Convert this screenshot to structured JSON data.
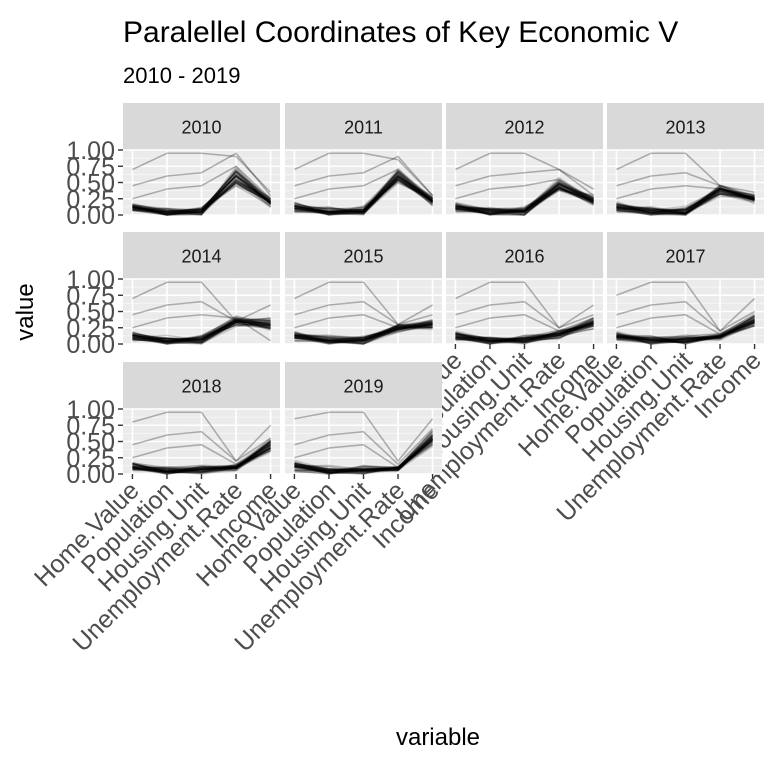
{
  "chart_data": {
    "type": "line",
    "title": "Paralellel Coordinates of Key Economic V",
    "subtitle": "2010 - 2019",
    "xlabel": "variable",
    "ylabel": "value",
    "ylim": [
      0,
      1
    ],
    "yticks": [
      "0.00",
      "0.25",
      "0.50",
      "0.75",
      "1.00"
    ],
    "x": [
      "Home.Value",
      "Population",
      "Housing.Unit",
      "Unemployment.Rate",
      "Income"
    ],
    "grid": true,
    "facets": [
      {
        "label": "2010",
        "center": [
          0.12,
          0.05,
          0.06,
          0.6,
          0.2
        ],
        "spread": [
          0.1,
          0.1,
          0.1,
          0.2,
          0.1
        ],
        "highlights": [
          [
            0.7,
            0.95,
            0.95,
            0.9,
            0.35
          ],
          [
            0.45,
            0.6,
            0.65,
            0.95,
            0.3
          ],
          [
            0.25,
            0.4,
            0.45,
            0.75,
            0.25
          ]
        ]
      },
      {
        "label": "2011",
        "center": [
          0.12,
          0.05,
          0.06,
          0.6,
          0.22
        ],
        "spread": [
          0.1,
          0.1,
          0.1,
          0.2,
          0.1
        ],
        "highlights": [
          [
            0.7,
            0.95,
            0.95,
            0.85,
            0.3
          ],
          [
            0.45,
            0.6,
            0.65,
            0.9,
            0.3
          ],
          [
            0.25,
            0.4,
            0.45,
            0.7,
            0.25
          ]
        ]
      },
      {
        "label": "2012",
        "center": [
          0.12,
          0.05,
          0.06,
          0.45,
          0.22
        ],
        "spread": [
          0.1,
          0.1,
          0.1,
          0.15,
          0.1
        ],
        "highlights": [
          [
            0.7,
            0.95,
            0.95,
            0.7,
            0.3
          ],
          [
            0.45,
            0.6,
            0.65,
            0.7,
            0.4
          ],
          [
            0.25,
            0.4,
            0.45,
            0.55,
            0.25
          ]
        ]
      },
      {
        "label": "2013",
        "center": [
          0.12,
          0.05,
          0.06,
          0.38,
          0.25
        ],
        "spread": [
          0.1,
          0.1,
          0.1,
          0.12,
          0.1
        ],
        "highlights": [
          [
            0.7,
            0.95,
            0.95,
            0.45,
            0.3
          ],
          [
            0.45,
            0.6,
            0.65,
            0.45,
            0.35
          ],
          [
            0.25,
            0.4,
            0.45,
            0.4,
            0.3
          ]
        ]
      },
      {
        "label": "2014",
        "center": [
          0.12,
          0.05,
          0.06,
          0.35,
          0.3
        ],
        "spread": [
          0.1,
          0.1,
          0.1,
          0.12,
          0.12
        ],
        "highlights": [
          [
            0.7,
            0.95,
            0.95,
            0.35,
            0.6
          ],
          [
            0.45,
            0.6,
            0.65,
            0.35,
            0.4
          ],
          [
            0.25,
            0.4,
            0.45,
            0.4,
            0.05
          ]
        ]
      },
      {
        "label": "2015",
        "center": [
          0.12,
          0.05,
          0.06,
          0.25,
          0.3
        ],
        "spread": [
          0.1,
          0.1,
          0.1,
          0.1,
          0.12
        ],
        "highlights": [
          [
            0.7,
            0.95,
            0.95,
            0.3,
            0.6
          ],
          [
            0.45,
            0.6,
            0.65,
            0.3,
            0.45
          ],
          [
            0.25,
            0.4,
            0.45,
            0.25,
            0.35
          ]
        ]
      },
      {
        "label": "2016",
        "center": [
          0.12,
          0.05,
          0.06,
          0.15,
          0.32
        ],
        "spread": [
          0.1,
          0.1,
          0.1,
          0.08,
          0.12
        ],
        "highlights": [
          [
            0.7,
            0.95,
            0.95,
            0.25,
            0.6
          ],
          [
            0.45,
            0.6,
            0.65,
            0.25,
            0.45
          ],
          [
            0.25,
            0.4,
            0.45,
            0.2,
            0.4
          ]
        ]
      },
      {
        "label": "2017",
        "center": [
          0.12,
          0.05,
          0.06,
          0.12,
          0.35
        ],
        "spread": [
          0.1,
          0.1,
          0.1,
          0.08,
          0.15
        ],
        "highlights": [
          [
            0.75,
            0.95,
            0.95,
            0.2,
            0.7
          ],
          [
            0.45,
            0.6,
            0.65,
            0.2,
            0.5
          ],
          [
            0.25,
            0.4,
            0.45,
            0.15,
            0.4
          ]
        ]
      },
      {
        "label": "2018",
        "center": [
          0.12,
          0.05,
          0.06,
          0.1,
          0.45
        ],
        "spread": [
          0.1,
          0.1,
          0.1,
          0.08,
          0.18
        ],
        "highlights": [
          [
            0.8,
            0.95,
            0.95,
            0.2,
            0.75
          ],
          [
            0.45,
            0.6,
            0.65,
            0.2,
            0.55
          ],
          [
            0.25,
            0.4,
            0.45,
            0.15,
            0.45
          ]
        ]
      },
      {
        "label": "2019",
        "center": [
          0.12,
          0.05,
          0.06,
          0.08,
          0.55
        ],
        "spread": [
          0.1,
          0.1,
          0.1,
          0.06,
          0.18
        ],
        "highlights": [
          [
            0.85,
            0.95,
            0.95,
            0.2,
            0.85
          ],
          [
            0.45,
            0.6,
            0.65,
            0.15,
            0.7
          ],
          [
            0.25,
            0.4,
            0.45,
            0.1,
            0.55
          ]
        ]
      }
    ]
  }
}
